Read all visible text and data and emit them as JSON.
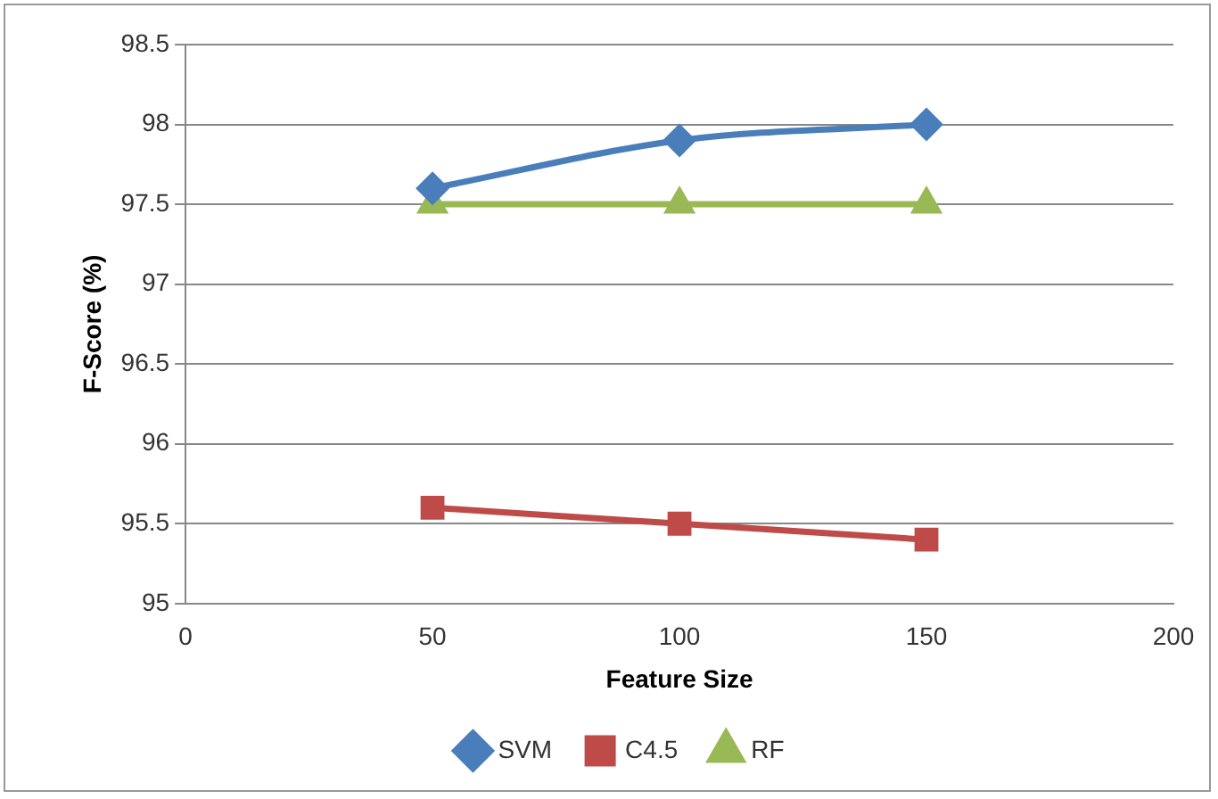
{
  "chart_data": {
    "type": "line",
    "xlabel": "Feature Size",
    "ylabel": "F-Score (%)",
    "x": [
      50,
      100,
      150
    ],
    "series": [
      {
        "name": "SVM",
        "color": "#4a7ebb",
        "marker": "diamond",
        "values": [
          97.6,
          97.9,
          98.0
        ]
      },
      {
        "name": "C4.5",
        "color": "#be4b48",
        "marker": "square",
        "values": [
          95.6,
          95.5,
          95.4
        ]
      },
      {
        "name": "RF",
        "color": "#98b954",
        "marker": "triangle",
        "values": [
          97.5,
          97.5,
          97.5
        ]
      }
    ],
    "xlim": [
      0,
      200
    ],
    "xticks": [
      0,
      50,
      100,
      150,
      200
    ],
    "ylim": [
      95,
      98.5
    ],
    "yticks": [
      95,
      95.5,
      96,
      96.5,
      97,
      97.5,
      98,
      98.5
    ],
    "grid": "y",
    "legend": "bottom",
    "line_style": "solid"
  }
}
